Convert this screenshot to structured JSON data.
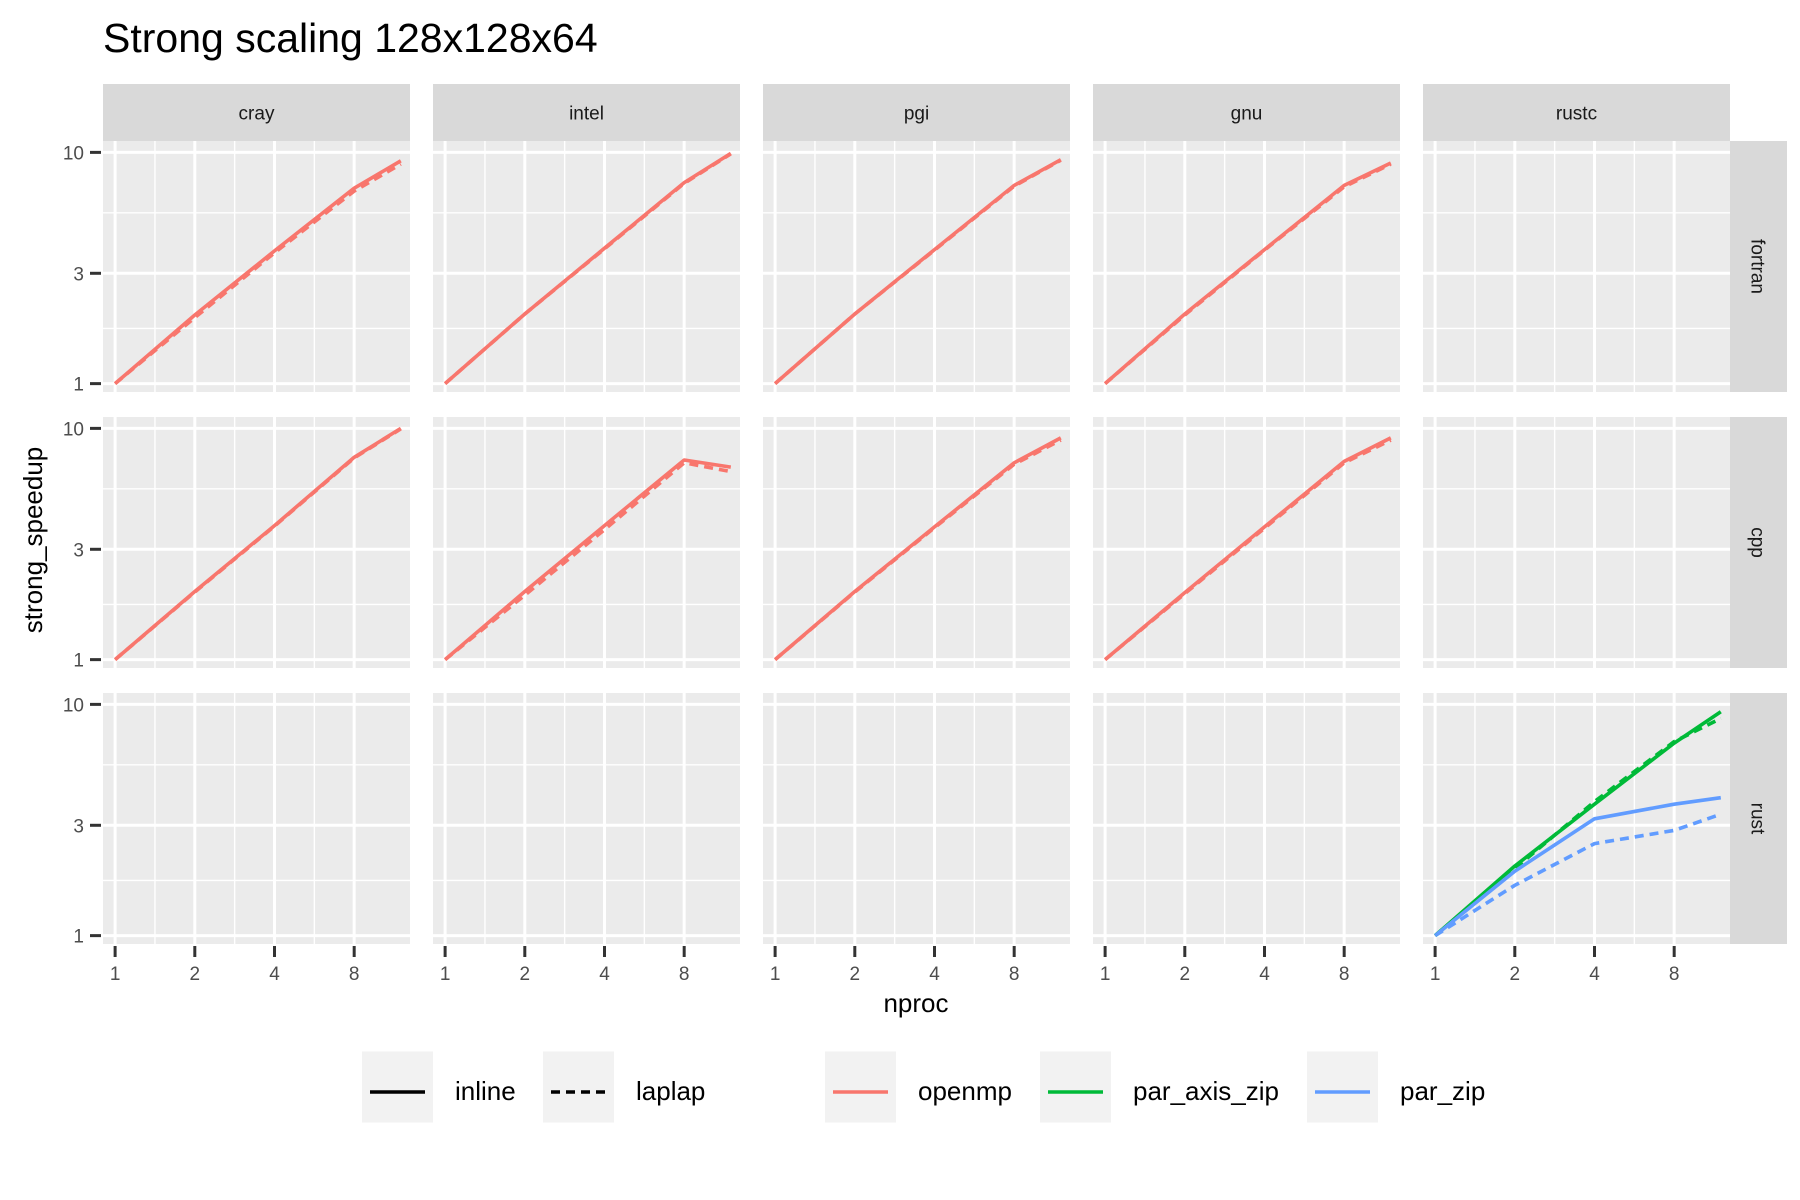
{
  "chart_data": {
    "type": "line",
    "title": "Strong scaling 128x128x64",
    "xlabel": "nproc",
    "ylabel": "strong_speedup",
    "x_scale": "log2",
    "y_scale": "log10",
    "xlim": [
      0.9,
      13
    ],
    "ylim": [
      0.92,
      11.2
    ],
    "x_ticks": [
      1,
      2,
      4,
      8
    ],
    "x_tick_labels": [
      "1",
      "2",
      "4",
      "8"
    ],
    "y_ticks": [
      1,
      3,
      10
    ],
    "y_tick_labels": [
      "1",
      "3",
      "10"
    ],
    "grid": true,
    "facet_columns": [
      "cray",
      "intel",
      "pgi",
      "gnu",
      "rustc"
    ],
    "facet_rows": [
      "fortran",
      "cpp",
      "rust"
    ],
    "x": [
      1,
      2,
      4,
      8,
      12
    ],
    "legend_position": "bottom",
    "legend": {
      "linetype": [
        {
          "label": "inline",
          "dash": "solid"
        },
        {
          "label": "laplap",
          "dash": "dashed"
        }
      ],
      "colour": [
        {
          "label": "openmp",
          "color": "#F8766D"
        },
        {
          "label": "par_axis_zip",
          "color": "#00BA38"
        },
        {
          "label": "par_zip",
          "color": "#619CFF"
        }
      ]
    },
    "panels": [
      {
        "column": "cray",
        "row": "fortran",
        "series": [
          {
            "variant": "openmp",
            "style": "inline",
            "values": [
              1,
              1.98,
              3.75,
              7.0,
              9.2
            ]
          },
          {
            "variant": "openmp",
            "style": "laplap",
            "values": [
              1,
              1.93,
              3.68,
              6.8,
              8.9
            ]
          }
        ]
      },
      {
        "column": "intel",
        "row": "fortran",
        "series": [
          {
            "variant": "openmp",
            "style": "inline",
            "values": [
              1,
              2.0,
              3.85,
              7.4,
              9.9
            ]
          },
          {
            "variant": "openmp",
            "style": "laplap",
            "values": [
              1,
              2.0,
              3.83,
              7.35,
              9.85
            ]
          }
        ]
      },
      {
        "column": "pgi",
        "row": "fortran",
        "series": [
          {
            "variant": "openmp",
            "style": "inline",
            "values": [
              1,
              2.0,
              3.8,
              7.2,
              9.3
            ]
          },
          {
            "variant": "openmp",
            "style": "laplap",
            "values": [
              1,
              2.0,
              3.78,
              7.15,
              9.25
            ]
          }
        ]
      },
      {
        "column": "gnu",
        "row": "fortran",
        "series": [
          {
            "variant": "openmp",
            "style": "inline",
            "values": [
              1,
              2.0,
              3.8,
              7.2,
              9.0
            ]
          },
          {
            "variant": "openmp",
            "style": "laplap",
            "values": [
              1,
              1.98,
              3.78,
              7.1,
              8.9
            ]
          }
        ]
      },
      {
        "column": "rustc",
        "row": "fortran",
        "series": []
      },
      {
        "column": "cray",
        "row": "cpp",
        "series": [
          {
            "variant": "openmp",
            "style": "inline",
            "values": [
              1,
              1.97,
              3.8,
              7.5,
              10.0
            ]
          },
          {
            "variant": "openmp",
            "style": "laplap",
            "values": [
              1,
              1.96,
              3.78,
              7.45,
              9.95
            ]
          }
        ]
      },
      {
        "column": "intel",
        "row": "cpp",
        "series": [
          {
            "variant": "openmp",
            "style": "inline",
            "values": [
              1,
              1.97,
              3.8,
              7.3,
              6.8
            ]
          },
          {
            "variant": "openmp",
            "style": "laplap",
            "values": [
              1,
              1.9,
              3.65,
              7.1,
              6.5
            ]
          }
        ]
      },
      {
        "column": "pgi",
        "row": "cpp",
        "series": [
          {
            "variant": "openmp",
            "style": "inline",
            "values": [
              1,
              1.97,
              3.75,
              7.1,
              9.1
            ]
          },
          {
            "variant": "openmp",
            "style": "laplap",
            "values": [
              1,
              1.96,
              3.72,
              7.0,
              8.9
            ]
          }
        ]
      },
      {
        "column": "gnu",
        "row": "cpp",
        "series": [
          {
            "variant": "openmp",
            "style": "inline",
            "values": [
              1,
              1.95,
              3.75,
              7.2,
              9.1
            ]
          },
          {
            "variant": "openmp",
            "style": "laplap",
            "values": [
              1,
              1.93,
              3.7,
              7.1,
              8.9
            ]
          }
        ]
      },
      {
        "column": "rustc",
        "row": "cpp",
        "series": []
      },
      {
        "column": "cray",
        "row": "rust",
        "series": []
      },
      {
        "column": "intel",
        "row": "rust",
        "series": []
      },
      {
        "column": "pgi",
        "row": "rust",
        "series": []
      },
      {
        "column": "gnu",
        "row": "rust",
        "series": []
      },
      {
        "column": "rustc",
        "row": "rust",
        "series": [
          {
            "variant": "par_axis_zip",
            "style": "inline",
            "values": [
              1,
              2.0,
              3.7,
              6.8,
              9.3
            ]
          },
          {
            "variant": "par_axis_zip",
            "style": "laplap",
            "values": [
              1,
              1.95,
              3.8,
              6.9,
              8.7
            ]
          },
          {
            "variant": "par_zip",
            "style": "inline",
            "values": [
              1,
              1.9,
              3.2,
              3.7,
              3.95
            ]
          },
          {
            "variant": "par_zip",
            "style": "laplap",
            "values": [
              1,
              1.65,
              2.5,
              2.85,
              3.35
            ]
          }
        ]
      }
    ]
  }
}
